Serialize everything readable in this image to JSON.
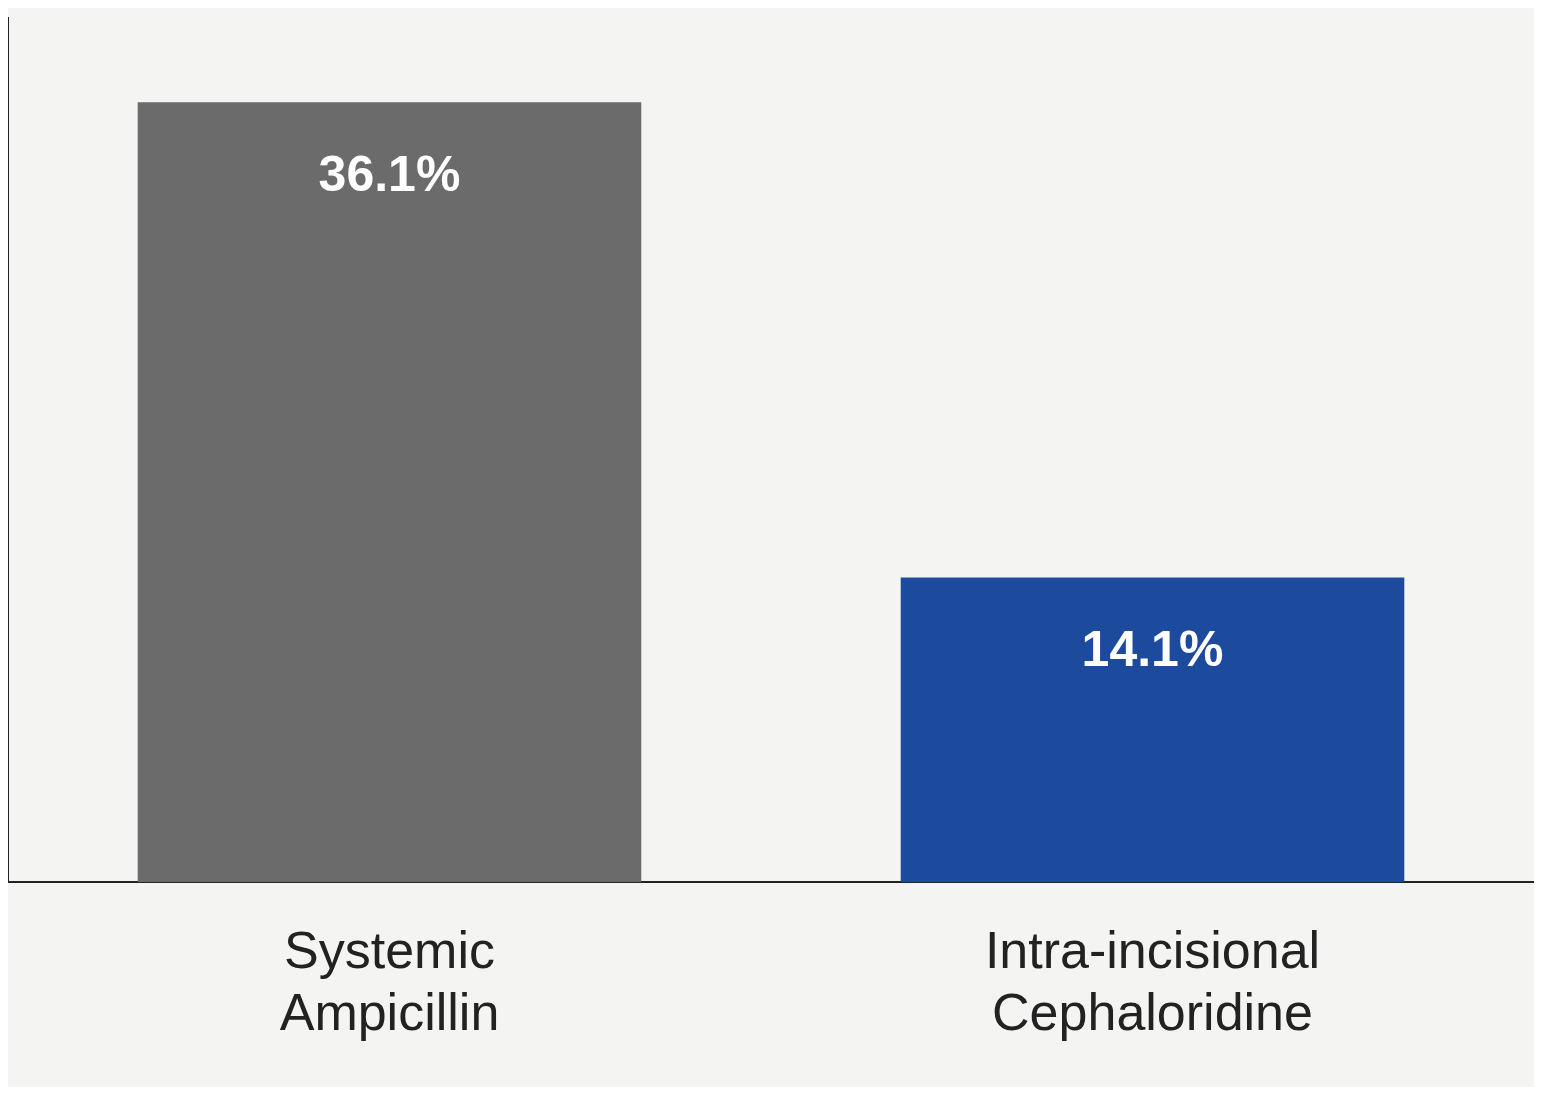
{
  "chart_data": {
    "type": "bar",
    "categories": [
      "Systemic Ampicillin",
      "Intra-incisional Cephaloridine"
    ],
    "values": [
      36.1,
      14.1
    ],
    "colors": [
      "#6b6b6b",
      "#1c4a9c"
    ],
    "value_labels": [
      "36.1%",
      "14.1%"
    ],
    "ylim": [
      0,
      40
    ],
    "tick_labels": "x",
    "grid": false,
    "legend": false
  }
}
